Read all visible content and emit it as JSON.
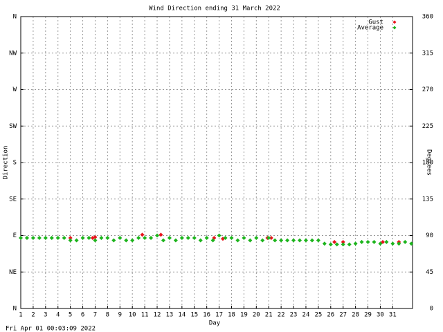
{
  "chart_data": {
    "type": "scatter",
    "title": "Wind Direction ending 31 March 2022",
    "xlabel": "Day",
    "ylabel": "Direction",
    "y2label": "Degrees",
    "footer": "Fri Apr 01 00:03:09 2022",
    "xlim": [
      1,
      32.6
    ],
    "ylim": [
      0,
      360
    ],
    "y2lim": [
      0,
      360
    ],
    "xticks": [
      1,
      2,
      3,
      4,
      5,
      6,
      7,
      8,
      9,
      10,
      11,
      12,
      13,
      14,
      15,
      16,
      17,
      18,
      19,
      20,
      21,
      22,
      23,
      24,
      25,
      26,
      27,
      28,
      29,
      30,
      31
    ],
    "yticks": [
      {
        "value": 0,
        "label": "N"
      },
      {
        "value": 45,
        "label": "NE"
      },
      {
        "value": 90,
        "label": "E"
      },
      {
        "value": 135,
        "label": "SE"
      },
      {
        "value": 180,
        "label": "S"
      },
      {
        "value": 225,
        "label": "SW"
      },
      {
        "value": 270,
        "label": "W"
      },
      {
        "value": 315,
        "label": "NW"
      },
      {
        "value": 360,
        "label": "N"
      }
    ],
    "y2ticks": [
      0,
      45,
      90,
      135,
      180,
      225,
      270,
      315,
      360
    ],
    "grid": true,
    "legend": "upper right",
    "series": [
      {
        "name": "Gust",
        "color": "#e8141c",
        "x": [
          5,
          6.8,
          7,
          10.8,
          12.3,
          16.6,
          17.3,
          20.9,
          21.2,
          26.3,
          27,
          30.2,
          31.5
        ],
        "values": [
          87,
          87,
          88,
          91,
          91,
          87,
          86,
          87,
          87,
          82,
          82,
          82,
          82
        ]
      },
      {
        "name": "Average",
        "color": "#1cb41c",
        "x": [
          1,
          1.5,
          2,
          2.5,
          3,
          3.5,
          4,
          4.5,
          5,
          5.5,
          6,
          6.5,
          7,
          7.5,
          8,
          8.5,
          9,
          9.5,
          10,
          10.5,
          11,
          11.5,
          12,
          12.5,
          13,
          13.5,
          14,
          14.5,
          15,
          15.5,
          16,
          16.5,
          17,
          17.5,
          18,
          18.5,
          19,
          19.5,
          20,
          20.5,
          21,
          21.5,
          22,
          22.5,
          23,
          23.5,
          24,
          24.5,
          25,
          25.5,
          26,
          26.5,
          27,
          27.5,
          28,
          28.5,
          29,
          29.5,
          30,
          30.5,
          31,
          31.5,
          32,
          32.5
        ],
        "values": [
          87,
          87,
          87,
          87,
          87,
          87,
          87,
          87,
          84,
          84,
          87,
          87,
          84,
          87,
          87,
          84,
          87,
          84,
          84,
          87,
          87,
          87,
          90,
          84,
          87,
          84,
          87,
          87,
          87,
          84,
          87,
          84,
          90,
          87,
          87,
          84,
          87,
          84,
          87,
          84,
          87,
          84,
          84,
          84,
          84,
          84,
          84,
          84,
          84,
          80,
          79,
          79,
          79,
          79,
          80,
          82,
          82,
          82,
          80,
          82,
          80,
          80,
          82,
          80
        ]
      }
    ]
  }
}
